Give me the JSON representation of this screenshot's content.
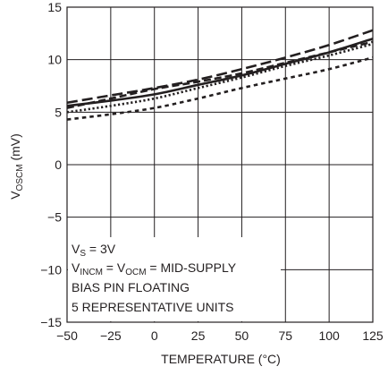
{
  "chart_data": {
    "type": "line",
    "xlabel": "TEMPERATURE (°C)",
    "ylabel": {
      "main": "V",
      "sub": "OSCM",
      "unit": " (mV)"
    },
    "xlim": [
      -50,
      125
    ],
    "ylim": [
      -15,
      15
    ],
    "x_ticks": [
      -50,
      -25,
      0,
      25,
      50,
      75,
      100,
      125
    ],
    "y_ticks": [
      -15,
      -10,
      -5,
      0,
      5,
      10,
      15
    ],
    "x_tick_labels": [
      "−50",
      "−25",
      "0",
      "25",
      "50",
      "75",
      "100",
      "125"
    ],
    "y_tick_labels": [
      "−15",
      "−10",
      "−5",
      "0",
      "5",
      "10",
      "15"
    ],
    "grid": true,
    "x": [
      -50,
      -25,
      0,
      25,
      50,
      75,
      100,
      125
    ],
    "series": [
      {
        "style": "solid",
        "values": [
          5.6,
          6.1,
          6.7,
          7.6,
          8.5,
          9.6,
          10.7,
          12.0
        ]
      },
      {
        "style": "long-dash",
        "values": [
          5.9,
          6.6,
          7.3,
          8.1,
          9.1,
          10.2,
          11.4,
          12.8
        ]
      },
      {
        "style": "medium-dash",
        "values": [
          5.4,
          6.3,
          7.2,
          7.9,
          8.7,
          9.7,
          10.7,
          11.7
        ]
      },
      {
        "style": "dotted",
        "values": [
          5.0,
          5.6,
          6.3,
          7.3,
          8.3,
          9.4,
          10.4,
          11.5
        ]
      },
      {
        "style": "short-dash",
        "values": [
          4.3,
          4.8,
          5.4,
          6.3,
          7.3,
          8.2,
          9.1,
          10.2
        ]
      }
    ],
    "annotations": [
      {
        "main": "V",
        "sub": "S",
        "rest": " = 3V"
      },
      {
        "main": "V",
        "sub": "INCM",
        "mid": " = V",
        "sub2": "OCM",
        "rest": " = MID-SUPPLY"
      },
      {
        "text": "BIAS PIN FLOATING"
      },
      {
        "text": "5 REPRESENTATIVE UNITS"
      }
    ],
    "line_color": "#231f20",
    "grid_color": "#231f20"
  }
}
